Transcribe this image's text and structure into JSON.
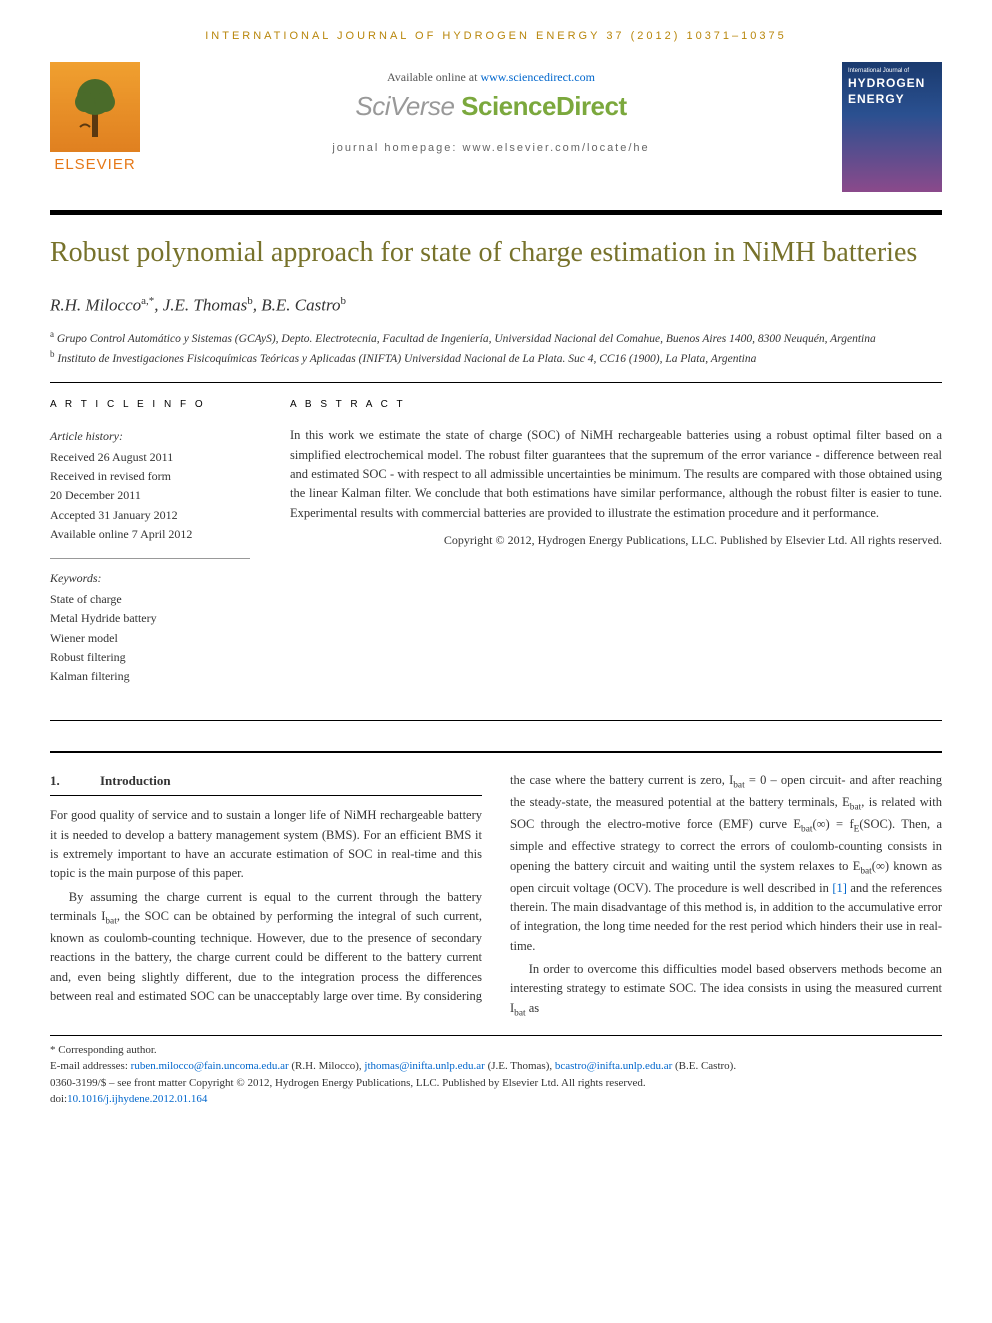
{
  "journal_header": "INTERNATIONAL JOURNAL OF HYDROGEN ENERGY 37 (2012) 10371–10375",
  "available_prefix": "Available online at ",
  "available_url": "www.sciencedirect.com",
  "brand_sci": "SciVerse ",
  "brand_sd": "ScienceDirect",
  "homepage_prefix": "journal homepage: ",
  "homepage_url": "www.elsevier.com/locate/he",
  "elsevier": "ELSEVIER",
  "cover": {
    "top": "International Journal of",
    "title1": "HYDROGEN",
    "title2": "ENERGY"
  },
  "title": "Robust polynomial approach for state of charge estimation in NiMH batteries",
  "authors_html": "R.H. Milocco<sup>a,*</sup>, J.E. Thomas<sup>b</sup>, B.E. Castro<sup>b</sup>",
  "affiliations": {
    "a": "Grupo Control Automático y Sistemas (GCAyS), Depto. Electrotecnia, Facultad de Ingeniería, Universidad Nacional del Comahue, Buenos Aires 1400, 8300 Neuquén, Argentina",
    "b": "Instituto de Investigaciones Fisicoquímicas Teóricas y Aplicadas (INIFTA) Universidad Nacional de La Plata. Suc 4, CC16 (1900), La Plata, Argentina"
  },
  "article_info_label": "A R T I C L E   I N F O",
  "abstract_label": "A B S T R A C T",
  "history_head": "Article history:",
  "history": [
    "Received 26 August 2011",
    "Received in revised form",
    "20 December 2011",
    "Accepted 31 January 2012",
    "Available online 7 April 2012"
  ],
  "keywords_head": "Keywords:",
  "keywords": [
    "State of charge",
    "Metal Hydride battery",
    "Wiener model",
    "Robust filtering",
    "Kalman filtering"
  ],
  "abstract": "In this work we estimate the state of charge (SOC) of NiMH rechargeable batteries using a robust optimal filter based on a simplified electrochemical model. The robust filter guarantees that the supremum of the error variance - difference between real and estimated SOC - with respect to all admissible uncertainties be minimum. The results are compared with those obtained using the linear Kalman filter. We conclude that both estimations have similar performance, although the robust filter is easier to tune. Experimental results with commercial batteries are provided to illustrate the estimation procedure and it performance.",
  "copyright": "Copyright © 2012, Hydrogen Energy Publications, LLC. Published by Elsevier Ltd. All rights reserved.",
  "intro_num": "1.",
  "intro_title": "Introduction",
  "para1": "For good quality of service and to sustain a longer life of NiMH rechargeable battery it is needed to develop a battery management system (BMS). For an efficient BMS it is extremely important to have an accurate estimation of SOC in real-time and this topic is the main purpose of this paper.",
  "para2_a": "By assuming the charge current is equal to the current through the battery terminals I",
  "para2_b": ", the SOC can be obtained by performing the integral of such current, known as coulomb-counting technique. However, due to the presence of secondary reactions in the battery, the charge current could be different to the battery current and, even being slightly different, due to the integration process the differences between real and estimated SOC can be unacceptably large ",
  "para2_c": "over time. By considering the case where the battery current is zero, I",
  "para2_d": " = 0 – open circuit- and after reaching the steady-state, the measured potential at the battery terminals, E",
  "para2_e": ", is related with SOC through the electro-motive force (EMF) curve E",
  "para2_f": "(∞) = f",
  "para2_g": "(SOC). Then, a simple and effective strategy to correct the errors of coulomb-counting consists in opening the battery circuit and waiting until the system relaxes to E",
  "para2_h": "(∞) known as open circuit voltage (OCV). The procedure is well described in ",
  "ref1": "[1]",
  "para2_i": " and the references therein. The main disadvantage of this method is, in addition to the accumulative error of integration, the long time needed for the rest period which hinders their use in real-time.",
  "para3_a": "In order to overcome this difficulties model based observers methods become an interesting strategy to estimate SOC. The idea consists in using the measured current I",
  "para3_b": " as",
  "sub_bat": "bat",
  "sub_E": "E",
  "corresponding": "* Corresponding author.",
  "emails_label": "E-mail addresses: ",
  "email1": "ruben.milocco@fain.uncoma.edu.ar",
  "email1_name": " (R.H. Milocco), ",
  "email2": "jthomas@inifta.unlp.edu.ar",
  "email2_name": " (J.E. Thomas), ",
  "email3": "bcastro@inifta.unlp.edu.ar",
  "email3_name": " (B.E. Castro).",
  "front_matter": "0360-3199/$ – see front matter Copyright © 2012, Hydrogen Energy Publications, LLC. Published by Elsevier Ltd. All rights reserved.",
  "doi_label": "doi:",
  "doi": "10.1016/j.ijhydene.2012.01.164"
}
